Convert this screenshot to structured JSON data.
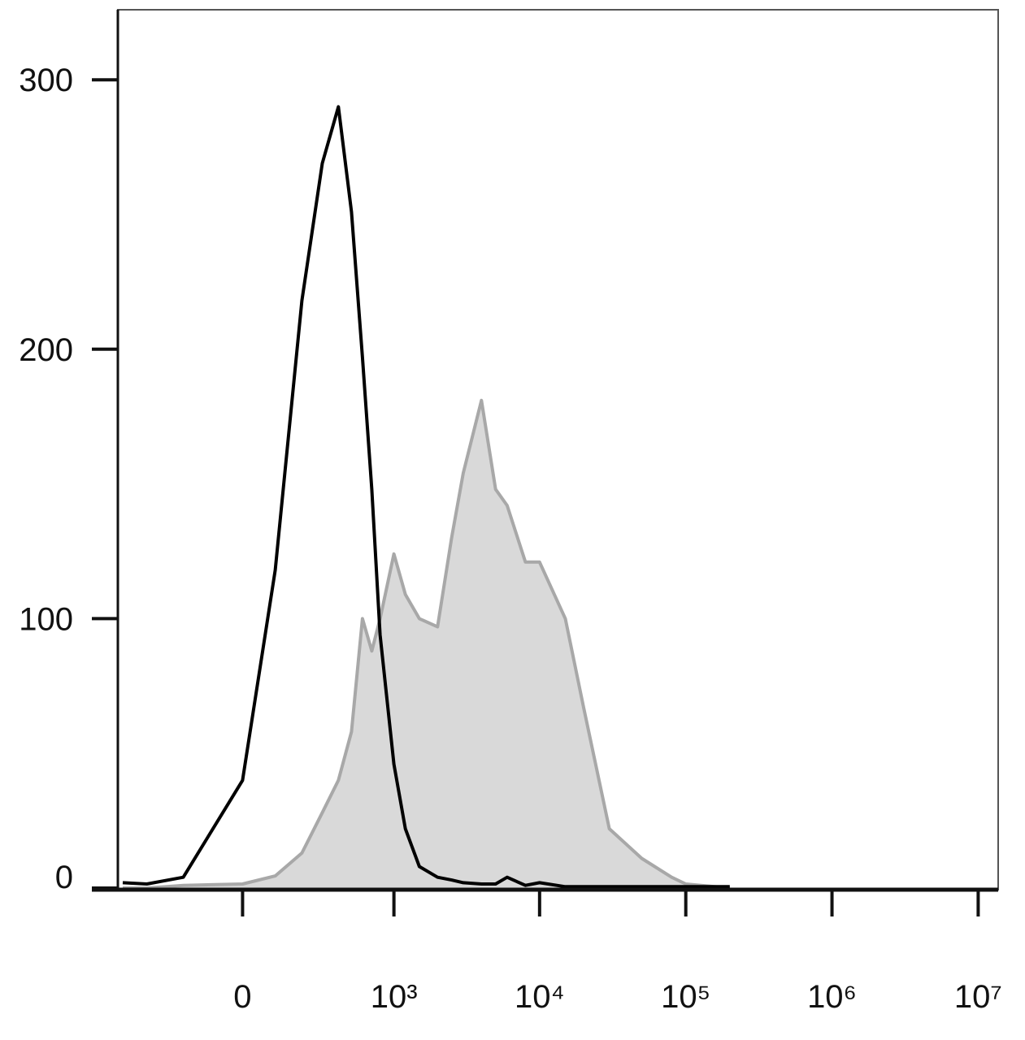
{
  "chart_data": {
    "type": "histogram-overlay",
    "x_scale": "biexponential",
    "x": [
      -600,
      -400,
      -200,
      0,
      100,
      200,
      300,
      400,
      500,
      600,
      700,
      800,
      1000,
      1200,
      1500,
      2000,
      2500,
      3000,
      4000,
      5000,
      6000,
      8000,
      10000,
      15000,
      20000,
      30000,
      50000,
      80000,
      100000,
      200000
    ],
    "series": [
      {
        "color": "#a8a8a8",
        "fill": "#d9d9d9",
        "filled": true,
        "values": [
          0,
          0,
          1,
          1.5,
          4.5,
          13,
          28,
          40,
          58,
          100,
          88,
          100,
          124,
          109,
          100,
          97,
          130,
          154,
          181,
          148,
          142,
          121,
          121,
          100,
          67,
          22,
          11,
          4,
          1.5,
          0
        ]
      },
      {
        "color": "#000000",
        "filled": false,
        "values": [
          2,
          1.5,
          4,
          40,
          118,
          218,
          269,
          290,
          251,
          197,
          148,
          94,
          46,
          22,
          8,
          4,
          3,
          2,
          1.5,
          1.5,
          4,
          1,
          2,
          0.5,
          0.5,
          0.5,
          0.5,
          0.5,
          0.5,
          0.5
        ]
      }
    ],
    "xlim": [
      -650,
      13700000
    ],
    "xticks": [
      0,
      {
        "value": 1000,
        "label": "10³"
      },
      {
        "value": 10000,
        "label": "10⁴"
      },
      {
        "value": 100000,
        "label": "10⁵"
      },
      {
        "value": 1000000,
        "label": "10⁶"
      },
      {
        "value": 10000000,
        "label": "10⁷"
      }
    ],
    "ylim": [
      0,
      326
    ],
    "yticks": [
      0,
      100,
      200,
      300
    ]
  }
}
